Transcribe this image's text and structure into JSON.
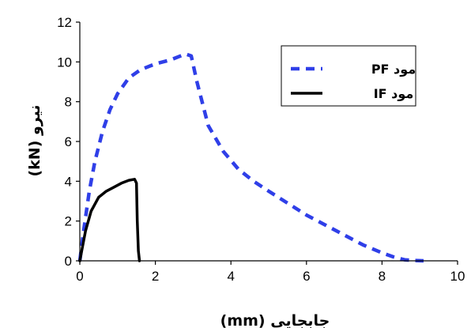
{
  "chart_data": {
    "type": "line",
    "xlabel": "جابجایی (mm)",
    "ylabel": "نیرو (kN)",
    "xlim": [
      0,
      10
    ],
    "ylim": [
      0,
      12
    ],
    "xticks": [
      "0",
      "2",
      "4",
      "6",
      "8",
      "10"
    ],
    "yticks": [
      "0",
      "2",
      "4",
      "6",
      "8",
      "10",
      "12"
    ],
    "grid": false,
    "legend_position": "top-right",
    "series": [
      {
        "name": "مود PF",
        "color": "#2F3FE8",
        "style": "dashed",
        "x": [
          0,
          0.1,
          0.25,
          0.4,
          0.6,
          0.8,
          1.0,
          1.3,
          1.6,
          2.0,
          2.4,
          2.8,
          2.95,
          3.1,
          3.4,
          3.8,
          4.2,
          4.6,
          5.0,
          5.5,
          6.0,
          6.5,
          7.0,
          7.5,
          8.0,
          8.3,
          8.6,
          8.8,
          9.1
        ],
        "y": [
          0,
          1.5,
          3.5,
          5.0,
          6.5,
          7.6,
          8.4,
          9.2,
          9.6,
          9.9,
          10.1,
          10.4,
          10.3,
          9.0,
          6.8,
          5.5,
          4.6,
          4.0,
          3.5,
          2.9,
          2.3,
          1.8,
          1.3,
          0.8,
          0.4,
          0.2,
          0.05,
          0.02,
          0
        ]
      },
      {
        "name": "مود IF",
        "color": "#000000",
        "style": "solid",
        "x": [
          0,
          0.05,
          0.15,
          0.3,
          0.5,
          0.7,
          0.9,
          1.1,
          1.3,
          1.45,
          1.5,
          1.52,
          1.55,
          1.58
        ],
        "y": [
          0,
          0.5,
          1.5,
          2.5,
          3.2,
          3.5,
          3.7,
          3.9,
          4.05,
          4.1,
          3.9,
          2.0,
          0.5,
          0
        ]
      }
    ]
  }
}
